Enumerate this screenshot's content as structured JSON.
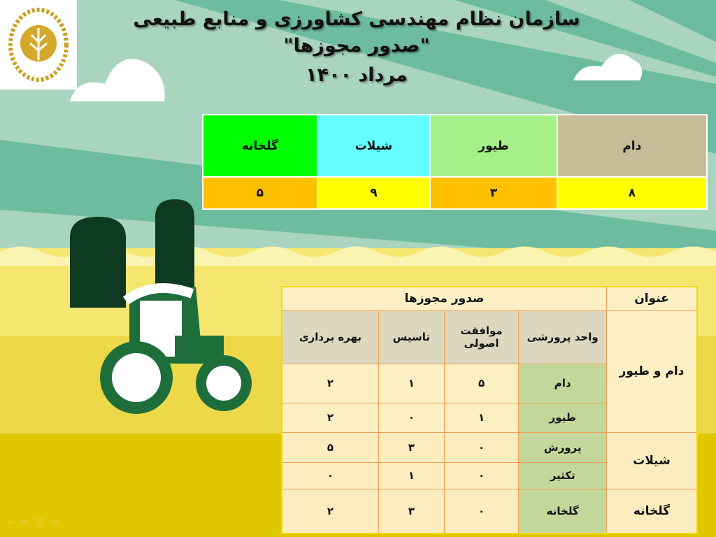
{
  "header": {
    "line1": "سازمان نظام مهندسی کشاورزی و منابع طبیعی",
    "line2": "\"صدور مجوزها\"",
    "line3": "مرداد ۱۴۰۰"
  },
  "summary": {
    "headers": [
      "دام",
      "طیور",
      "شیلات",
      "گلخانه"
    ],
    "values": [
      "۸",
      "۳",
      "۹",
      "۵"
    ],
    "colors": [
      "#c4bd97",
      "#a6f08a",
      "#66ffff",
      "#00ff00"
    ],
    "value_colors": [
      "#ffff00",
      "#ffc000",
      "#ffff00",
      "#ffc000"
    ]
  },
  "details": {
    "title_col": "عنوان",
    "group_header": "صدور مجوزها",
    "columns": [
      "واحد پرورشی",
      "موافقت اصولی",
      "تاسیس",
      "بهره برداری"
    ],
    "groups": [
      "دام و طیور",
      "شیلات",
      "گلخانه"
    ],
    "rows": [
      {
        "unit": "دام",
        "approval": "۵",
        "establish": "۱",
        "operation": "۲"
      },
      {
        "unit": "طیور",
        "approval": "۱",
        "establish": "۰",
        "operation": "۲"
      },
      {
        "unit": "پرورش",
        "approval": "۰",
        "establish": "۳",
        "operation": "۵"
      },
      {
        "unit": "تکثیر",
        "approval": "۰",
        "establish": "۱",
        "operation": "۰"
      },
      {
        "unit": "گلخانه",
        "approval": "۰",
        "establish": "۳",
        "operation": "۲"
      }
    ]
  },
  "nav_icons": [
    "arrow-left-icon",
    "pen-icon",
    "menu-icon",
    "arrow-right-icon"
  ]
}
